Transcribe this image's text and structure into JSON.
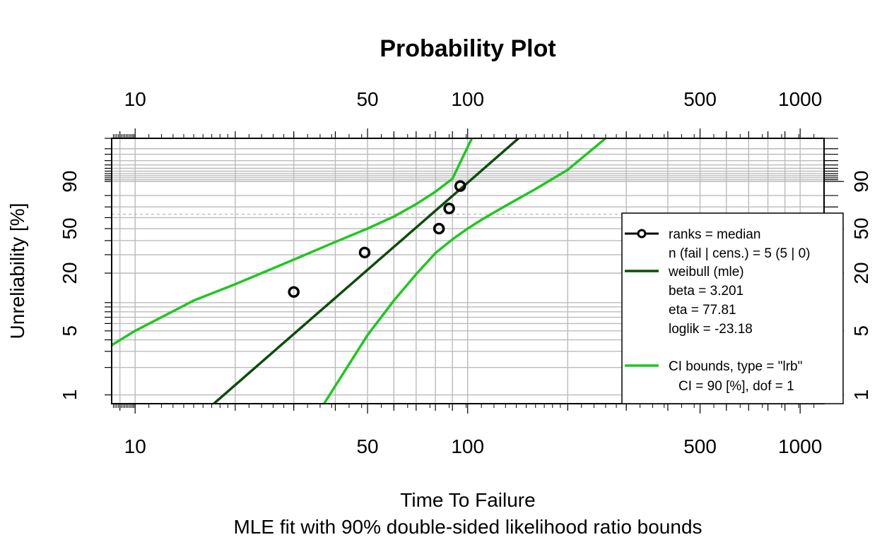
{
  "chart_data": {
    "type": "scatter",
    "title": "Probability Plot",
    "xlabel": "Time To Failure",
    "xlabel_sub": "MLE fit with 90% double-sided likelihood ratio bounds",
    "ylabel": "Unreliability [%]",
    "x_scale": "log",
    "y_scale": "weibull",
    "xlim": [
      8.5,
      1180
    ],
    "ylim_percent": [
      0.8,
      99.9
    ],
    "grid": true,
    "x_tick_labels": [
      10,
      50,
      100,
      500,
      1000
    ],
    "y_tick_labels": [
      1,
      5,
      20,
      50,
      90
    ],
    "y_tick_text": [
      "1",
      "5",
      "20",
      "50",
      "90"
    ],
    "legend_position": "bottom-right",
    "series": [
      {
        "name": "ranks = median",
        "kind": "points",
        "color": "#000000",
        "x": [
          30,
          49,
          82,
          88,
          95
        ],
        "y_percent": [
          12.9,
          31.4,
          50.0,
          68.6,
          87.1
        ]
      },
      {
        "name": "weibull (mle)",
        "kind": "fit",
        "color": "#0b4d0b",
        "beta": 3.201,
        "eta": 77.81
      },
      {
        "name": "CI bounds, type = \"lrb\"",
        "kind": "bounds",
        "color": "#1fc71f",
        "lower": {
          "x": [
            37,
            50,
            60,
            70,
            80,
            90,
            100,
            110,
            130,
            160,
            200,
            260
          ],
          "y_percent": [
            0.8,
            4.5,
            10.5,
            19.5,
            31,
            41,
            50,
            58,
            71,
            85,
            95.5,
            99.9
          ]
        },
        "upper": {
          "x": [
            8.5,
            10,
            15,
            20,
            30,
            40,
            50,
            60,
            70,
            80,
            90,
            103
          ],
          "y_percent": [
            3.5,
            5,
            10.5,
            15.5,
            27,
            39,
            50,
            61,
            72.5,
            83,
            91.5,
            99.9
          ]
        }
      }
    ],
    "legend": {
      "points_label": "ranks = median",
      "points_info": "n (fail | cens.) = 5 (5 | 0)",
      "fit_label": "weibull (mle)",
      "fit_params": [
        "beta = 3.201",
        "eta = 77.81",
        "loglik = -23.18"
      ],
      "ci_label": "CI bounds, type = \"lrb\"",
      "ci_info": "CI = 90 [%], dof = 1"
    }
  }
}
